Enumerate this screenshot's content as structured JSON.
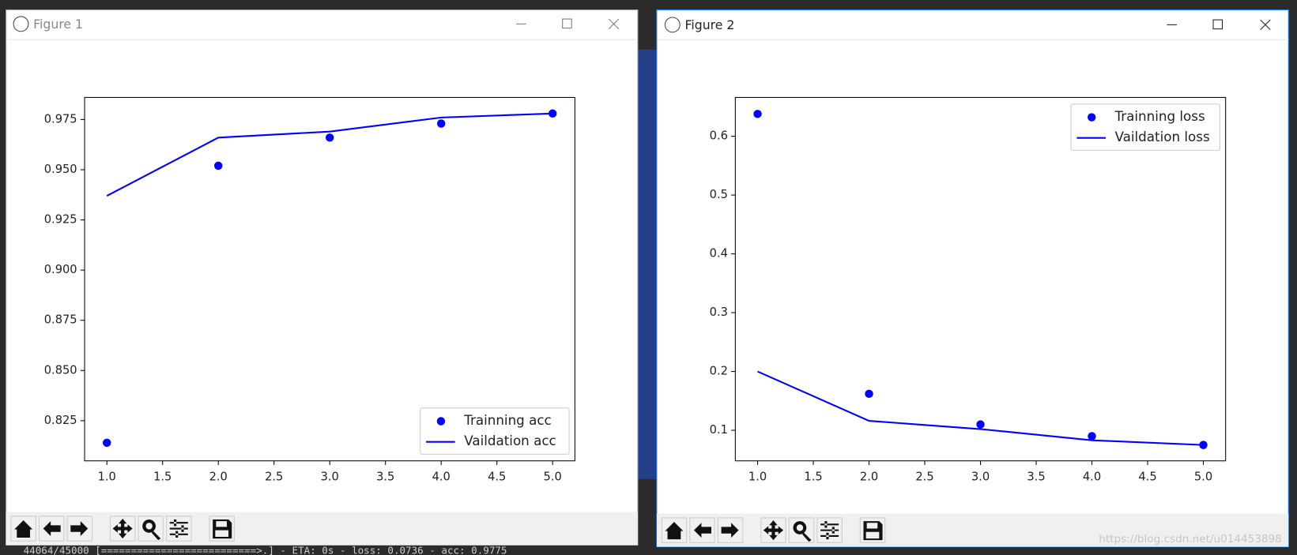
{
  "windows": [
    {
      "title": "Figure 1"
    },
    {
      "title": "Figure 2"
    }
  ],
  "console": {
    "text": "44064/45000 [==========================>.] - ETA: 0s - loss: 0.0736 - acc: 0.9775"
  },
  "watermark": "https://blog.csdn.net/u014453898",
  "chart_data": [
    {
      "type": "line",
      "x": [
        1,
        2,
        3,
        4,
        5
      ],
      "xlim": [
        0.8,
        5.2
      ],
      "xticks": [
        {
          "value": 1,
          "label": "1.0"
        },
        1.5,
        {
          "value": 2,
          "label": "2.0"
        },
        2.5,
        {
          "value": 3,
          "label": "3.0"
        },
        3.5,
        {
          "value": 4,
          "label": "4.0"
        },
        4.5,
        {
          "value": 5,
          "label": "5.0"
        }
      ],
      "ylim": [
        0.805,
        0.986
      ],
      "yticks": [
        0.825,
        {
          "value": 0.85,
          "label": "0.850"
        },
        0.875,
        {
          "value": 0.9,
          "label": "0.900"
        },
        0.925,
        {
          "value": 0.95,
          "label": "0.950"
        },
        0.975
      ],
      "legend": "lower right",
      "series": [
        {
          "name": "Trainning acc",
          "color": "#0000ff",
          "mode": "markers",
          "values": [
            0.814,
            0.952,
            0.966,
            0.973,
            0.978
          ]
        },
        {
          "name": "Vaildation acc",
          "color": "#0000ff",
          "mode": "line",
          "values": [
            0.937,
            0.966,
            0.969,
            0.976,
            0.978
          ]
        }
      ]
    },
    {
      "type": "line",
      "x": [
        1,
        2,
        3,
        4,
        5
      ],
      "xlim": [
        0.8,
        5.2
      ],
      "xticks": [
        {
          "value": 1,
          "label": "1.0"
        },
        1.5,
        {
          "value": 2,
          "label": "2.0"
        },
        2.5,
        {
          "value": 3,
          "label": "3.0"
        },
        3.5,
        {
          "value": 4,
          "label": "4.0"
        },
        4.5,
        {
          "value": 5,
          "label": "5.0"
        }
      ],
      "ylim": [
        0.048,
        0.666
      ],
      "yticks": [
        0.1,
        0.2,
        0.3,
        0.4,
        0.5,
        0.6
      ],
      "legend": "upper right",
      "series": [
        {
          "name": "Trainning loss",
          "color": "#0000ff",
          "mode": "markers",
          "values": [
            0.638,
            0.162,
            0.11,
            0.09,
            0.075
          ]
        },
        {
          "name": "Vaildation loss",
          "color": "#0000ff",
          "mode": "line",
          "values": [
            0.2,
            0.116,
            0.102,
            0.083,
            0.075
          ]
        }
      ]
    }
  ]
}
